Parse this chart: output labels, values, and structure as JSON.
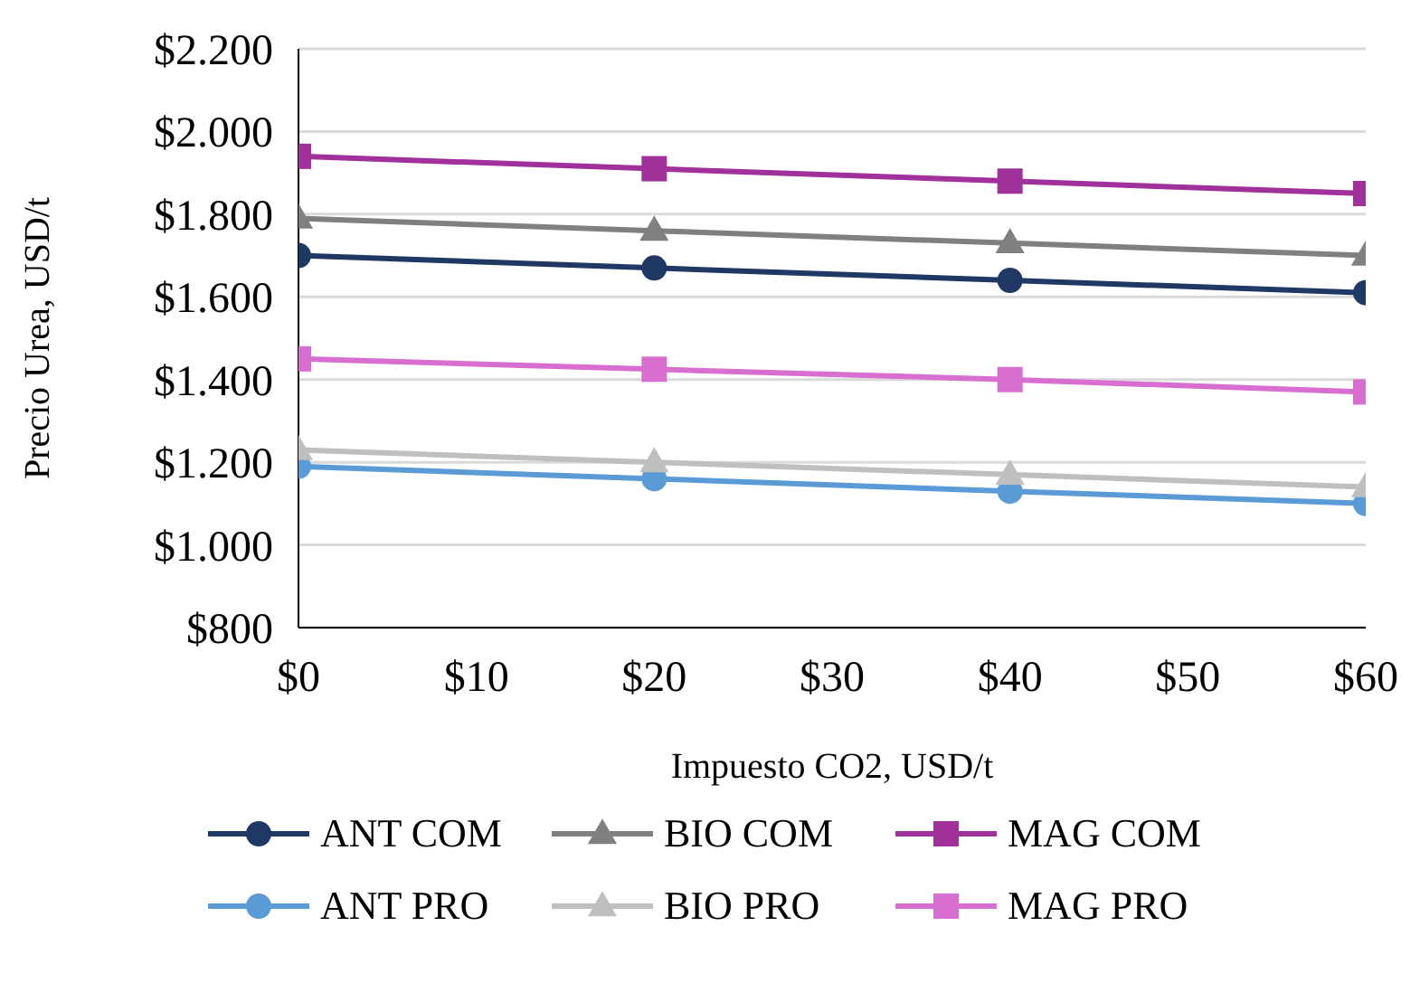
{
  "chart_data": {
    "type": "line",
    "xlabel": "Impuesto CO2, USD/t",
    "ylabel": "Precio Urea, USD/t",
    "x": [
      0,
      20,
      40,
      60
    ],
    "xlim": [
      0,
      60
    ],
    "xticks": [
      {
        "value": 0,
        "label": "$0"
      },
      {
        "value": 10,
        "label": "$10"
      },
      {
        "value": 20,
        "label": "$20"
      },
      {
        "value": 30,
        "label": "$30"
      },
      {
        "value": 40,
        "label": "$40"
      },
      {
        "value": 50,
        "label": "$50"
      },
      {
        "value": 60,
        "label": "$60"
      }
    ],
    "ylim": [
      800,
      2200
    ],
    "yticks": [
      {
        "value": 800,
        "label": "$800"
      },
      {
        "value": 1000,
        "label": "$1.000"
      },
      {
        "value": 1200,
        "label": "$1.200"
      },
      {
        "value": 1400,
        "label": "$1.400"
      },
      {
        "value": 1600,
        "label": "$1.600"
      },
      {
        "value": 1800,
        "label": "$1.800"
      },
      {
        "value": 2000,
        "label": "$2.000"
      },
      {
        "value": 2200,
        "label": "$2.200"
      }
    ],
    "grid": "y",
    "legend": "bottom",
    "line_style": "solid",
    "series": [
      {
        "name": "ANT COM",
        "color": "#203864",
        "marker": "circle",
        "values": [
          1700,
          1670,
          1640,
          1610
        ]
      },
      {
        "name": "BIO COM",
        "color": "#808080",
        "marker": "triangle",
        "values": [
          1790,
          1760,
          1730,
          1700
        ]
      },
      {
        "name": "MAG COM",
        "color": "#a0309a",
        "marker": "square",
        "values": [
          1940,
          1910,
          1880,
          1850
        ]
      },
      {
        "name": "ANT PRO",
        "color": "#5b9bd5",
        "marker": "circle",
        "values": [
          1190,
          1160,
          1130,
          1100
        ]
      },
      {
        "name": "BIO PRO",
        "color": "#bfbfbf",
        "marker": "triangle",
        "values": [
          1230,
          1200,
          1170,
          1140
        ]
      },
      {
        "name": "MAG PRO",
        "color": "#d86fd0",
        "marker": "square",
        "values": [
          1450,
          1425,
          1400,
          1370
        ]
      }
    ]
  }
}
